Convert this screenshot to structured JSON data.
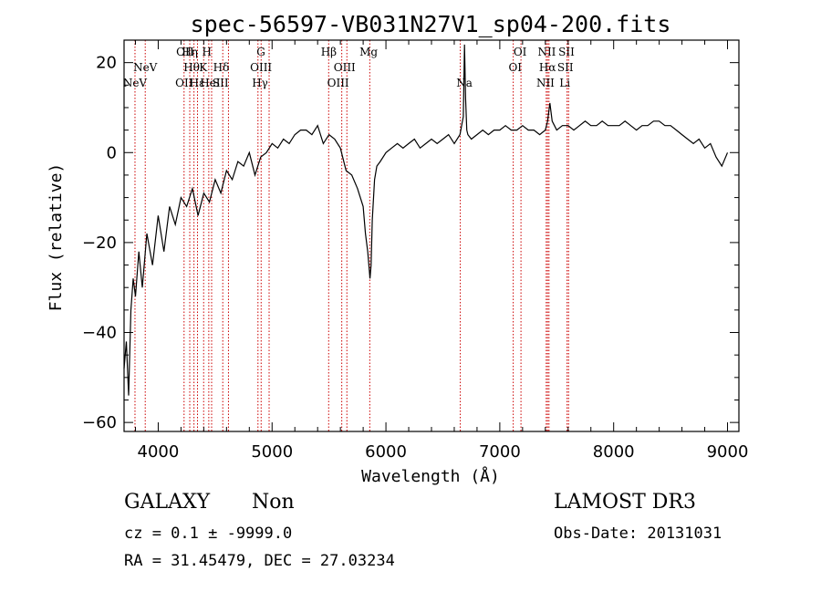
{
  "chart_data": {
    "type": "line",
    "title": "spec-56597-VB031N27V1_sp04-200.fits",
    "xlabel": "Wavelength (Å)",
    "ylabel": "Flux (relative)",
    "xlim": [
      3700,
      9100
    ],
    "ylim": [
      -62,
      25
    ],
    "xticks": [
      4000,
      5000,
      6000,
      7000,
      8000,
      9000
    ],
    "xtick_labels": [
      "4000",
      "5000",
      "6000",
      "7000",
      "8000",
      "9000"
    ],
    "yticks": [
      -60,
      -40,
      -20,
      0,
      20
    ],
    "ytick_labels": [
      "−60",
      "−40",
      "−20",
      "0",
      "20"
    ],
    "series": [
      {
        "name": "spectrum",
        "x": [
          3700,
          3720,
          3740,
          3760,
          3780,
          3800,
          3830,
          3860,
          3900,
          3950,
          4000,
          4050,
          4100,
          4150,
          4200,
          4250,
          4300,
          4350,
          4400,
          4450,
          4500,
          4550,
          4600,
          4650,
          4700,
          4750,
          4800,
          4850,
          4900,
          4950,
          5000,
          5050,
          5100,
          5150,
          5200,
          5250,
          5300,
          5350,
          5400,
          5450,
          5500,
          5550,
          5600,
          5650,
          5700,
          5750,
          5800,
          5820,
          5840,
          5860,
          5870,
          5880,
          5900,
          5920,
          5950,
          6000,
          6050,
          6100,
          6150,
          6200,
          6250,
          6300,
          6350,
          6400,
          6450,
          6500,
          6550,
          6600,
          6650,
          6680,
          6690,
          6700,
          6710,
          6720,
          6750,
          6800,
          6850,
          6900,
          6950,
          7000,
          7050,
          7100,
          7150,
          7200,
          7250,
          7300,
          7350,
          7400,
          7420,
          7440,
          7460,
          7480,
          7500,
          7550,
          7600,
          7650,
          7700,
          7750,
          7800,
          7850,
          7900,
          7950,
          8000,
          8050,
          8100,
          8150,
          8200,
          8250,
          8300,
          8350,
          8400,
          8450,
          8500,
          8550,
          8600,
          8650,
          8700,
          8750,
          8800,
          8850,
          8900,
          8950,
          9000
        ],
        "y": [
          -48,
          -42,
          -54,
          -35,
          -28,
          -32,
          -22,
          -30,
          -18,
          -25,
          -14,
          -22,
          -12,
          -16,
          -10,
          -12,
          -8,
          -14,
          -9,
          -11,
          -6,
          -9,
          -4,
          -6,
          -2,
          -3,
          0,
          -5,
          -1,
          0,
          2,
          1,
          3,
          2,
          4,
          5,
          5,
          4,
          6,
          2,
          4,
          3,
          1,
          -4,
          -5,
          -8,
          -12,
          -18,
          -22,
          -28,
          -25,
          -15,
          -6,
          -3,
          -2,
          0,
          1,
          2,
          1,
          2,
          3,
          1,
          2,
          3,
          2,
          3,
          4,
          2,
          4,
          8,
          24,
          12,
          5,
          4,
          3,
          4,
          5,
          4,
          5,
          5,
          6,
          5,
          5,
          6,
          5,
          5,
          4,
          5,
          7,
          11,
          7,
          6,
          5,
          6,
          6,
          5,
          6,
          7,
          6,
          6,
          7,
          6,
          6,
          6,
          7,
          6,
          5,
          6,
          6,
          7,
          7,
          6,
          6,
          5,
          4,
          3,
          2,
          3,
          1,
          2,
          -1,
          -3,
          0
        ]
      }
    ],
    "emission_lines": [
      {
        "label": "NeV",
        "x": 3796,
        "row": 3
      },
      {
        "label": "NeV",
        "x": 3886,
        "row": 2
      },
      {
        "label": "OII",
        "x": 4227,
        "row": 3
      },
      {
        "label": "OII",
        "x": 4235,
        "row": 1
      },
      {
        "label": "Hη",
        "x": 4277,
        "row": 1
      },
      {
        "label": "Hθ",
        "x": 4294,
        "row": 2
      },
      {
        "label": "Hε",
        "x": 4341,
        "row": 3
      },
      {
        "label": "H",
        "x": 4427,
        "row": 1
      },
      {
        "label": "K",
        "x": 4395,
        "row": 2
      },
      {
        "label": "HeI",
        "x": 4456,
        "row": 3
      },
      {
        "label": "Hδ",
        "x": 4553,
        "row": 2
      },
      {
        "label": "SII",
        "x": 4547,
        "row": 3
      },
      {
        "label": "G",
        "x": 4902,
        "row": 1
      },
      {
        "label": "OIII",
        "x": 4903,
        "row": 2
      },
      {
        "label": "Hγ",
        "x": 4894,
        "row": 3
      },
      {
        "label": "Hβ",
        "x": 5498,
        "row": 1
      },
      {
        "label": "OIII",
        "x": 5637,
        "row": 2
      },
      {
        "label": "OIII",
        "x": 5580,
        "row": 3
      },
      {
        "label": "Mg",
        "x": 5848,
        "row": 1
      },
      {
        "label": "Na",
        "x": 6689,
        "row": 3
      },
      {
        "label": "OI",
        "x": 7178,
        "row": 1
      },
      {
        "label": "OI",
        "x": 7135,
        "row": 2
      },
      {
        "label": "NII",
        "x": 7413,
        "row": 1
      },
      {
        "label": "SII",
        "x": 7586,
        "row": 1
      },
      {
        "label": "Hα",
        "x": 7419,
        "row": 2
      },
      {
        "label": "SII",
        "x": 7576,
        "row": 2
      },
      {
        "label": "NII",
        "x": 7401,
        "row": 3
      },
      {
        "label": "Li",
        "x": 7571,
        "row": 3
      }
    ],
    "line_markers_x": [
      3796,
      3886,
      4227,
      4277,
      4314,
      4345,
      4399,
      4444,
      4469,
      4567,
      4617,
      4876,
      4904,
      4974,
      5497,
      5612,
      5657,
      5858,
      6653,
      7118,
      7186,
      7408,
      7419,
      7432,
      7591,
      7604
    ]
  },
  "footer": {
    "object_class": "GALAXY",
    "subclass": "Non",
    "survey": "LAMOST DR3",
    "cz_line": "cz = 0.1 ± -9999.0",
    "obs_date": "Obs-Date: 20131031",
    "radec": "RA =  31.45479, DEC =  27.03234"
  },
  "colors": {
    "marker": "#cc0000",
    "line": "#000000"
  }
}
